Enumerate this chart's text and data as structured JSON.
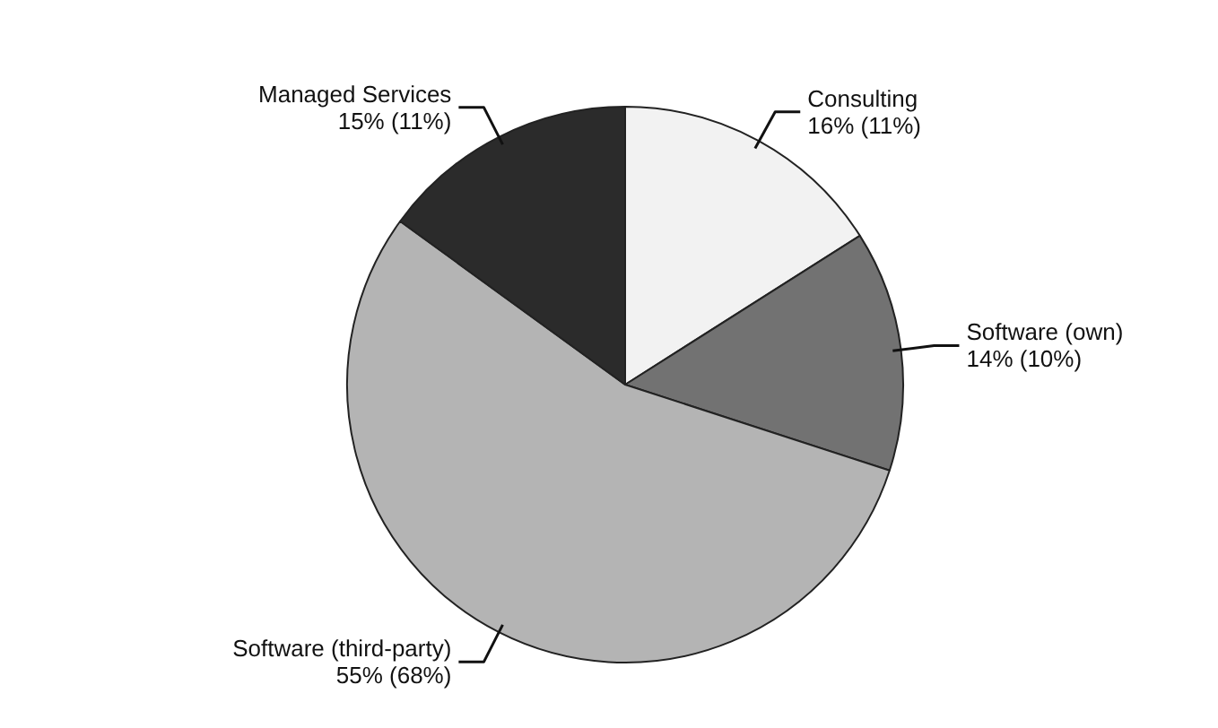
{
  "chart_data": {
    "type": "pie",
    "categories": [
      "Consulting",
      "Software (own)",
      "Software (third-party)",
      "Managed Services"
    ],
    "values": [
      16,
      14,
      55,
      15
    ],
    "value_labels": [
      "16% (11%)",
      "14% (10%)",
      "55% (68%)",
      "15% (11%)"
    ],
    "colors": [
      "#f2f2f2",
      "#727272",
      "#b4b4b4",
      "#2b2b2b"
    ]
  }
}
